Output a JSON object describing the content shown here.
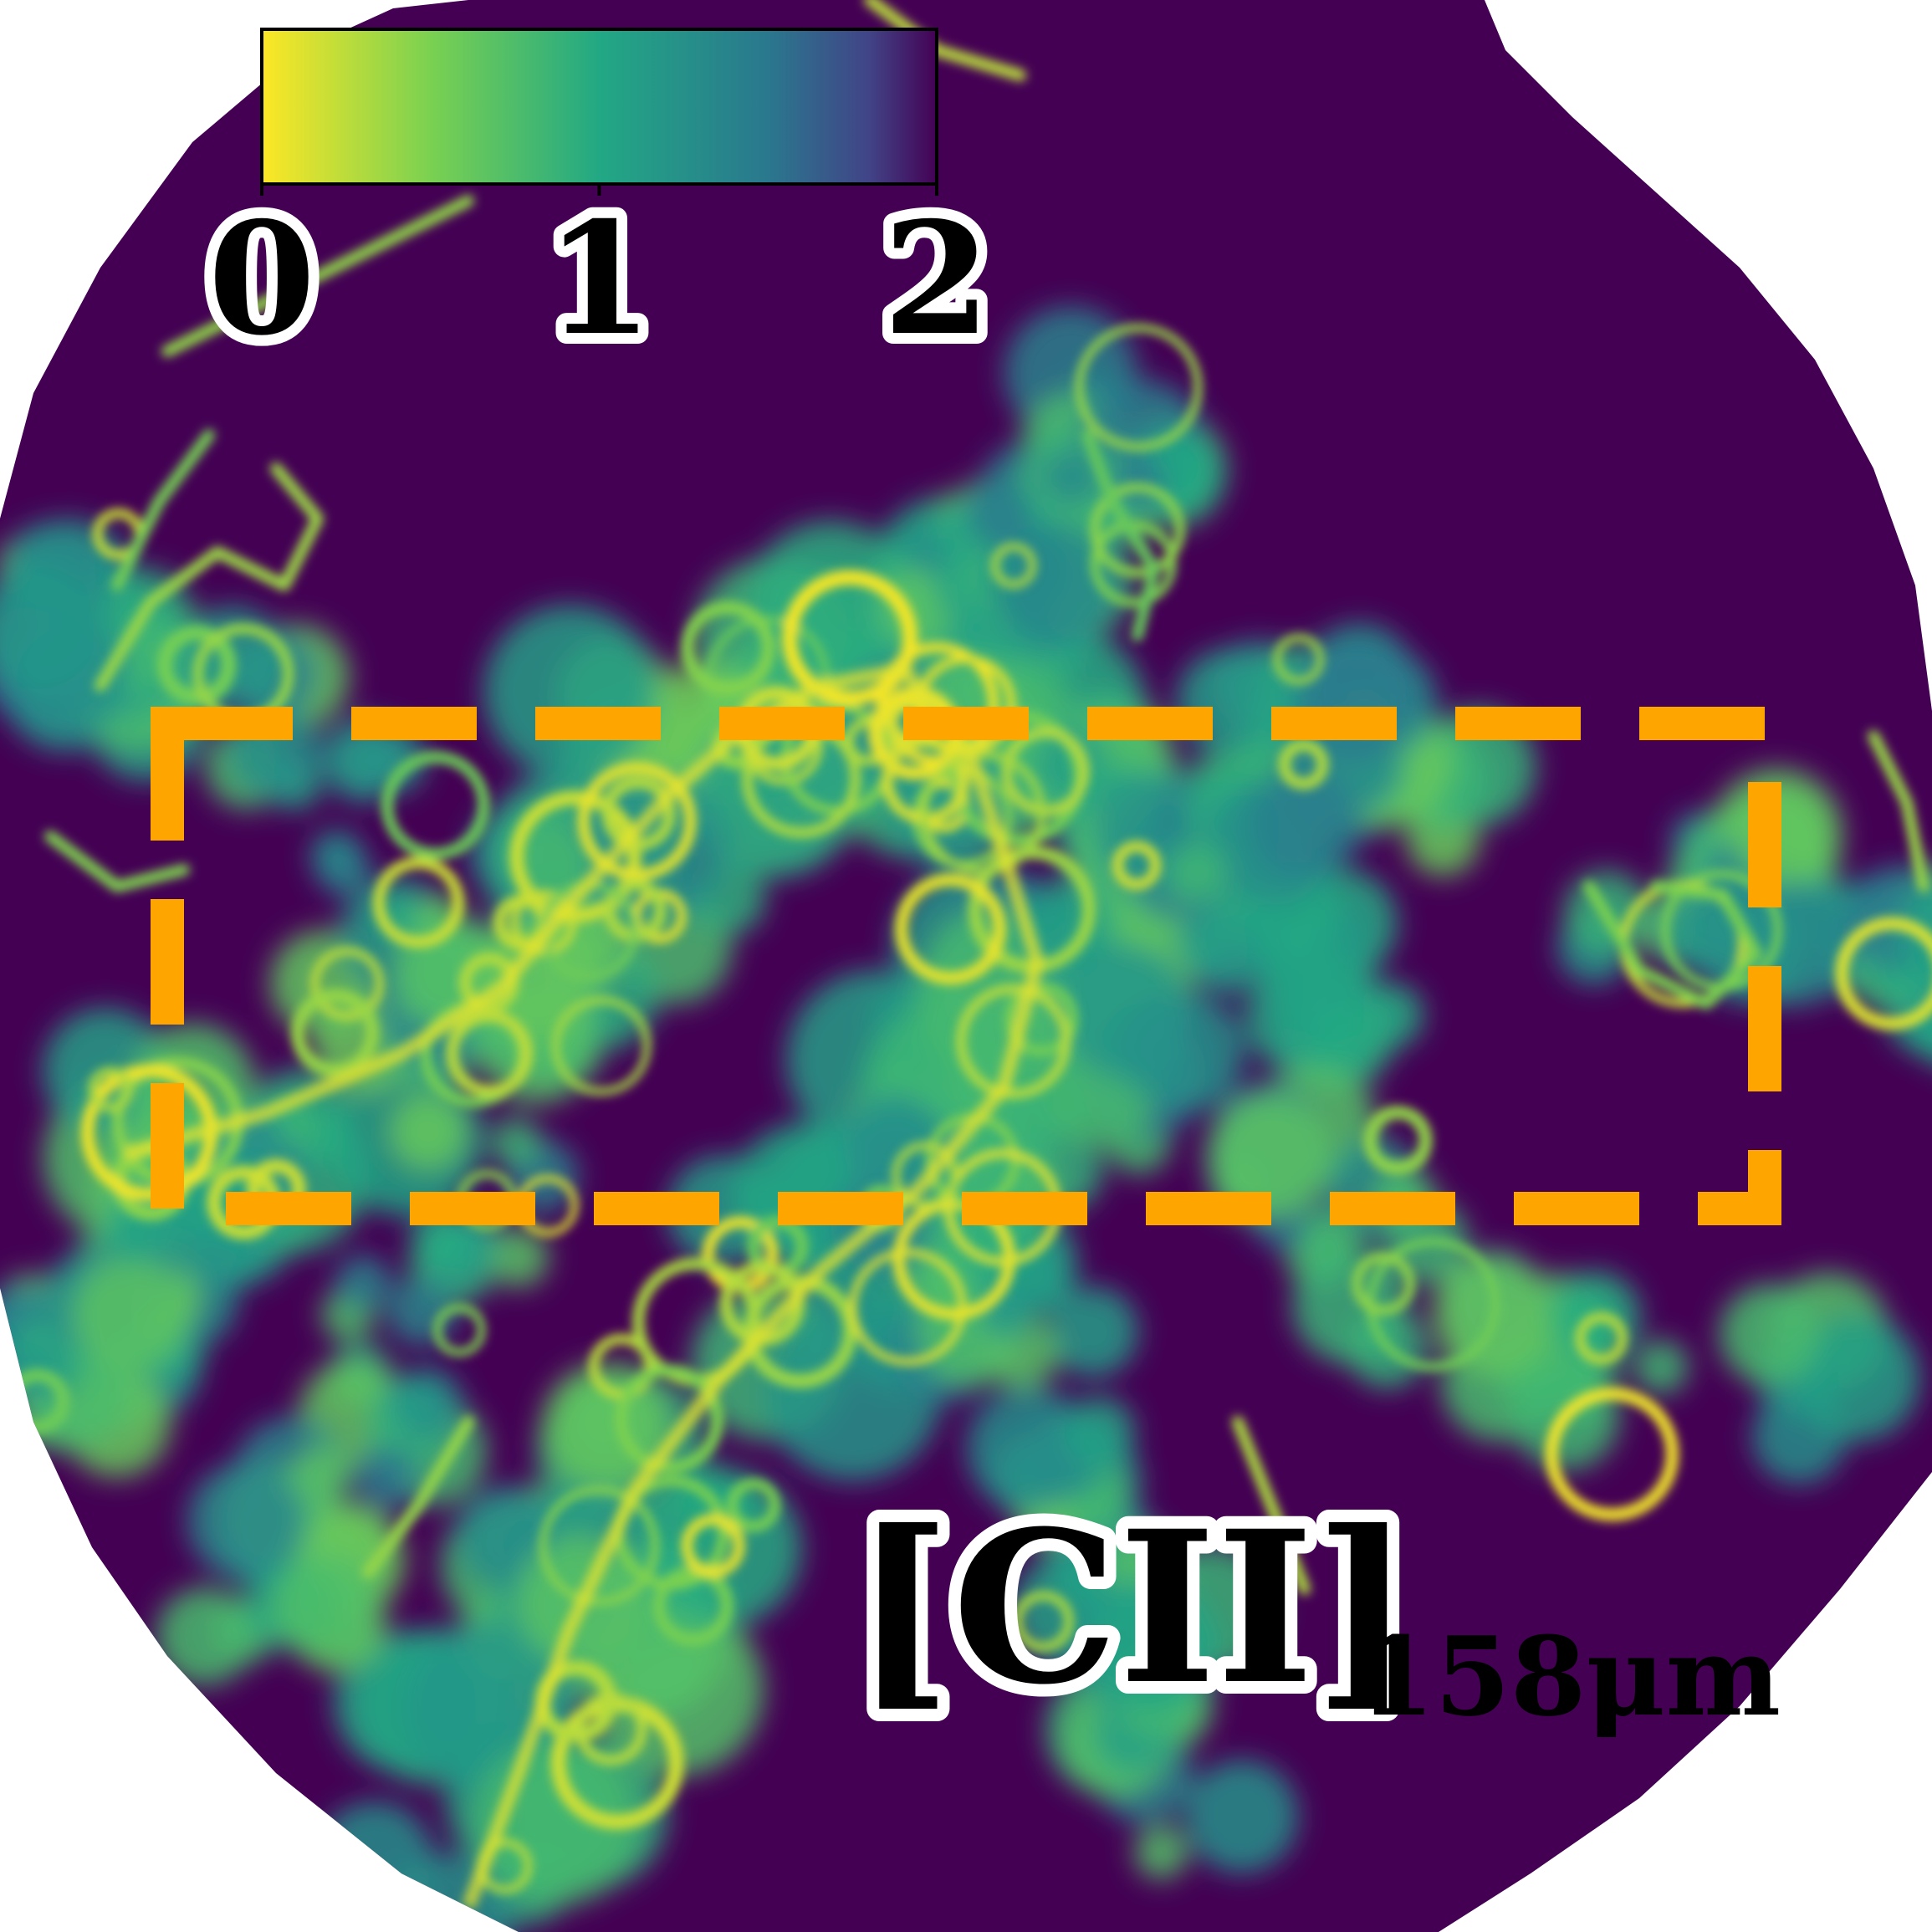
{
  "chart_data": {
    "type": "heatmap",
    "title": "",
    "xlabel": "",
    "ylabel": "",
    "colormap": "viridis_r",
    "colorbar": {
      "range": [
        0,
        2
      ],
      "ticks": [
        0,
        1,
        2
      ],
      "tick_labels": [
        "0",
        "1",
        "2"
      ],
      "orientation": "horizontal",
      "placement": "top-left"
    },
    "annotation": {
      "label": "[CII]",
      "sub": "158μm",
      "placement": "bottom-right"
    },
    "highlight_box": {
      "style": "dashed",
      "color": "#ffa500",
      "placement": "center-upper"
    },
    "background_value": 2,
    "mask": "circular"
  }
}
